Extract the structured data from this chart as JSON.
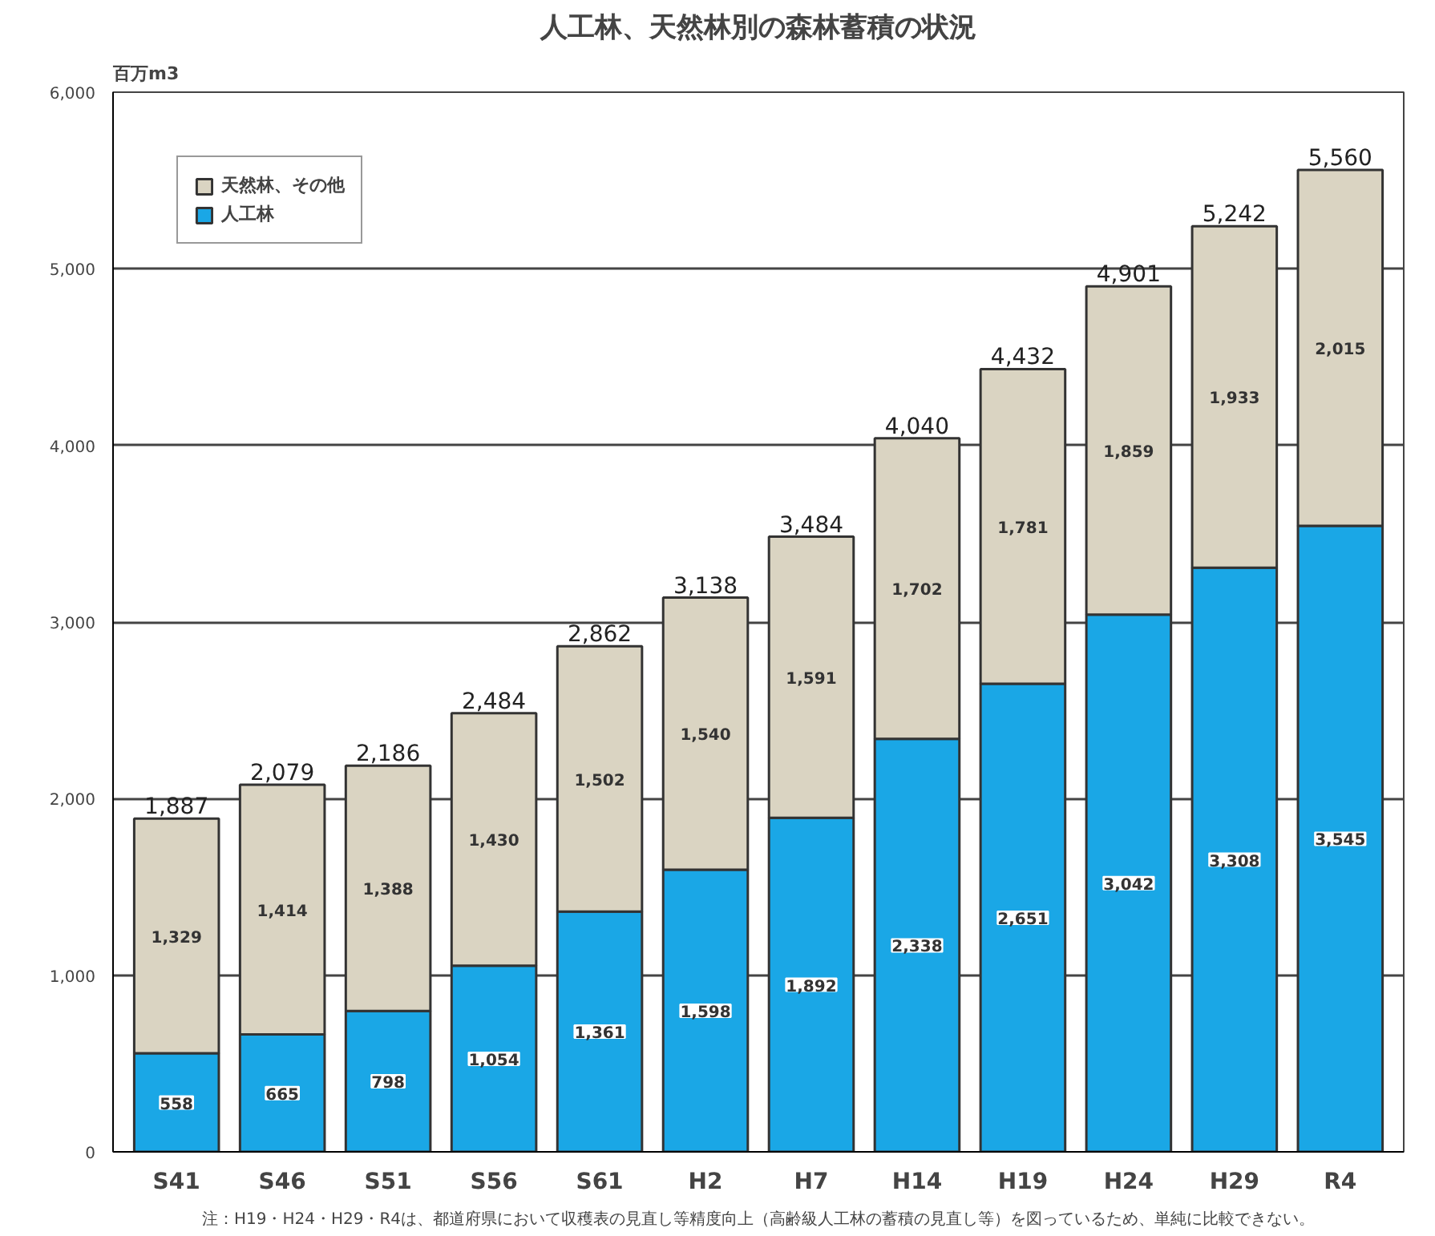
{
  "chart_data": {
    "type": "bar",
    "stacked": true,
    "title": "人工林、天然林別の森林蓄積の状況",
    "ylabel": "百万m3",
    "categories": [
      "S41",
      "S46",
      "S51",
      "S56",
      "S61",
      "H2",
      "H7",
      "H14",
      "H19",
      "H24",
      "H29",
      "R4"
    ],
    "series": [
      {
        "name": "人工林",
        "color": "#1aa7e6",
        "values": [
          558,
          665,
          798,
          1054,
          1361,
          1598,
          1892,
          2338,
          2651,
          3042,
          3308,
          3545
        ],
        "value_labels": [
          "558",
          "665",
          "798",
          "1,054",
          "1,361",
          "1,598",
          "1,892",
          "2,338",
          "2,651",
          "3,042",
          "3,308",
          "3,545"
        ]
      },
      {
        "name": "天然林、その他",
        "color": "#dad4c2",
        "values": [
          1329,
          1414,
          1388,
          1430,
          1502,
          1540,
          1591,
          1702,
          1781,
          1859,
          1933,
          2015
        ],
        "value_labels": [
          "1,329",
          "1,414",
          "1,388",
          "1,430",
          "1,502",
          "1,540",
          "1,591",
          "1,702",
          "1,781",
          "1,859",
          "1,933",
          "2,015"
        ]
      }
    ],
    "totals": [
      "1,887",
      "2,079",
      "2,186",
      "2,484",
      "2,862",
      "3,138",
      "3,484",
      "4,040",
      "4,432",
      "4,901",
      "5,242",
      "5,560"
    ],
    "ylim": [
      0,
      6000
    ],
    "yticks": [
      {
        "value": 0,
        "label": "0"
      },
      {
        "value": 1000,
        "label": "1,000"
      },
      {
        "value": 2000,
        "label": "2,000"
      },
      {
        "value": 3000,
        "label": "3,000"
      },
      {
        "value": 4000,
        "label": "4,000"
      },
      {
        "value": 5000,
        "label": "5,000"
      },
      {
        "value": 6000,
        "label": "6,000"
      }
    ],
    "grid": "y",
    "legend": "top left",
    "annotations": [
      "注：H19・H24・H29・R4は、都道府県において収穫表の見直し等精度向上（高齢級人工林の蓄積の見直し等）を図っているため、単純に比較できない。"
    ]
  }
}
